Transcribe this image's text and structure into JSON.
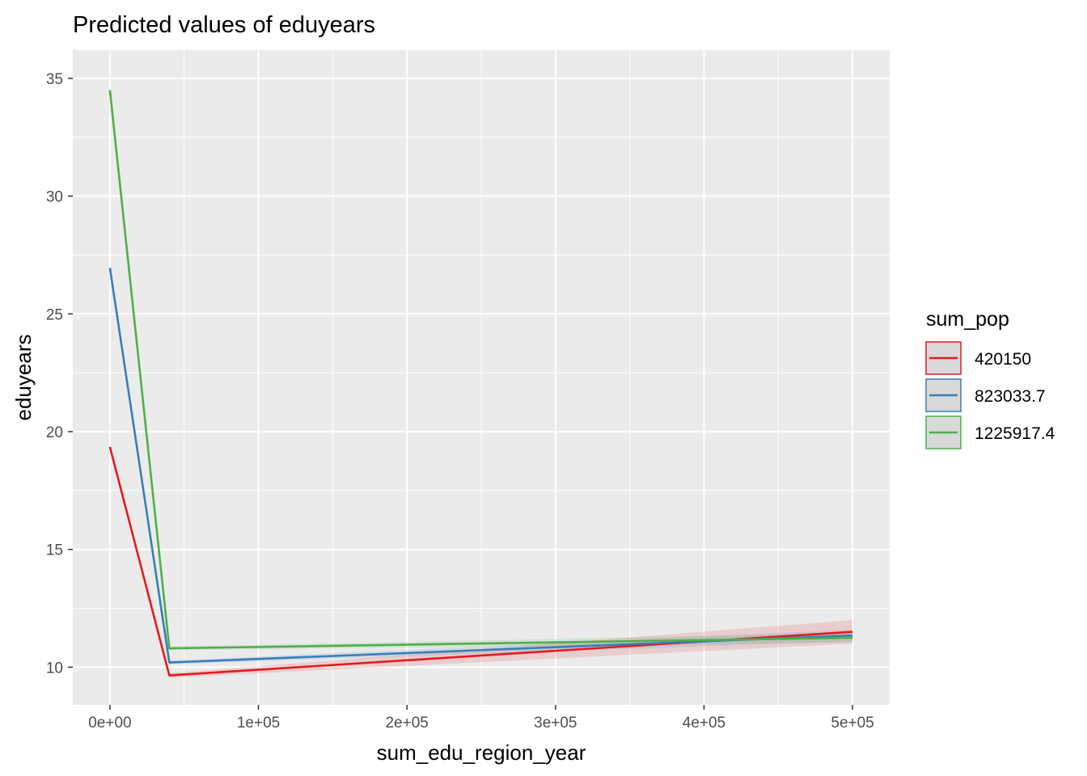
{
  "chart_data": {
    "type": "line",
    "title": "Predicted values of eduyears",
    "xlabel": "sum_edu_region_year",
    "ylabel": "eduyears",
    "xlim": [
      -25000,
      525000
    ],
    "ylim": [
      8.4,
      36.2
    ],
    "x_ticks": [
      0,
      100000,
      200000,
      300000,
      400000,
      500000
    ],
    "x_tick_labels": [
      "0e+00",
      "1e+05",
      "2e+05",
      "3e+05",
      "4e+05",
      "5e+05"
    ],
    "y_ticks": [
      10,
      15,
      20,
      25,
      30,
      35
    ],
    "y_tick_labels": [
      "10",
      "15",
      "20",
      "25",
      "30",
      "35"
    ],
    "grid": true,
    "background": "#ebebeb",
    "legend": {
      "title": "sum_pop",
      "position": "right"
    },
    "series": [
      {
        "name": "420150",
        "color": "#e41a1c",
        "x": [
          0,
          40000,
          500000
        ],
        "y": [
          19.35,
          9.65,
          11.5
        ],
        "ci_low": [
          19.25,
          9.55,
          11.0
        ],
        "ci_high": [
          19.45,
          9.75,
          12.0
        ]
      },
      {
        "name": "823033.7",
        "color": "#377eb8",
        "x": [
          0,
          40000,
          500000
        ],
        "y": [
          26.95,
          10.2,
          11.35
        ],
        "ci_low": [
          26.85,
          10.12,
          11.1
        ],
        "ci_high": [
          27.05,
          10.28,
          11.6
        ]
      },
      {
        "name": "1225917.4",
        "color": "#4daf4a",
        "x": [
          0,
          40000,
          500000
        ],
        "y": [
          34.5,
          10.8,
          11.25
        ],
        "ci_low": [
          34.4,
          10.72,
          11.05
        ],
        "ci_high": [
          34.6,
          10.88,
          11.45
        ]
      }
    ]
  }
}
